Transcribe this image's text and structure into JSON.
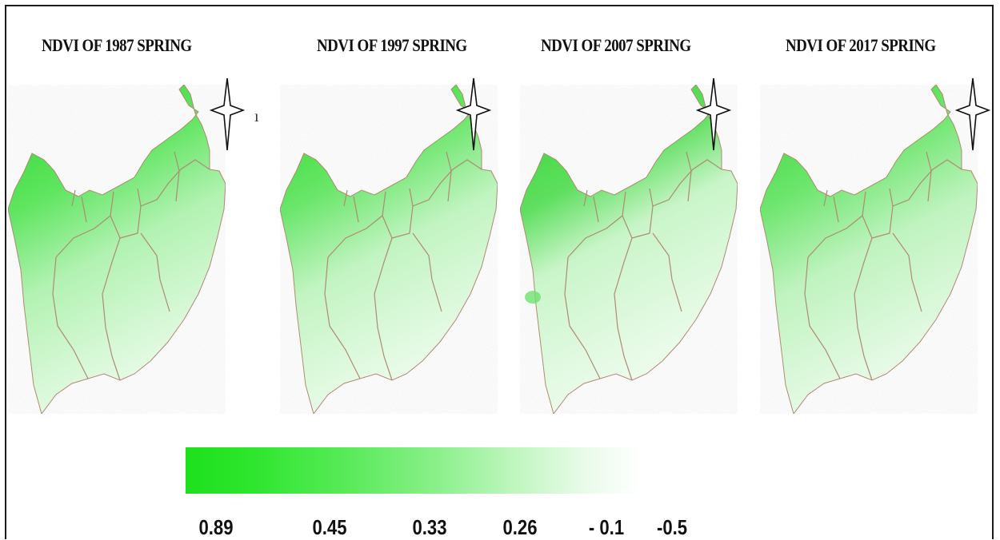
{
  "maps": [
    {
      "title": "NDVI OF 1987 SPRING",
      "id": "1987"
    },
    {
      "title": "NDVI OF 1997 SPRING",
      "id": "1997"
    },
    {
      "title": "NDVI OF 2007 SPRING",
      "id": "2007"
    },
    {
      "title": "NDVI OF 2017 SPRING",
      "id": "2017"
    }
  ],
  "legend": {
    "labels": [
      "0.89",
      "0.45",
      "0.33",
      "0.26",
      "- 0.1",
      "-0.5"
    ],
    "colors": [
      "#1de01d",
      "#58ea58",
      "#8af08a",
      "#bff6bf",
      "#eafbea",
      "#ffffff"
    ]
  },
  "colors": {
    "vegetation_high": "#2ad82a",
    "vegetation_low": "#e8fbe8",
    "boundary": "#b08a72",
    "north_arrow": "#111111"
  }
}
